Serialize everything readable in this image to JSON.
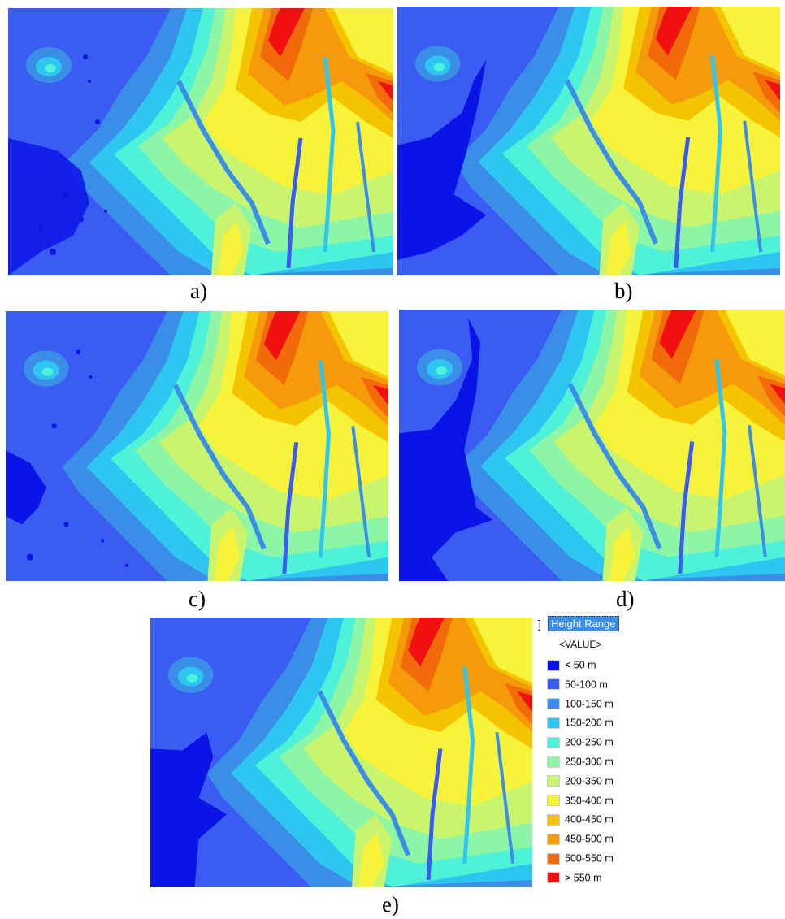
{
  "panels": [
    {
      "id": "a",
      "caption": "a)"
    },
    {
      "id": "b",
      "caption": "b)"
    },
    {
      "id": "c",
      "caption": "c)"
    },
    {
      "id": "d",
      "caption": "d)"
    },
    {
      "id": "e",
      "caption": "e)"
    }
  ],
  "legend": {
    "bracket": "]",
    "title": "Height Range",
    "subtitle": "<VALUE>",
    "items": [
      {
        "label": "< 50 m",
        "color": "#0a14e6"
      },
      {
        "label": "50-100 m",
        "color": "#3a5cf2"
      },
      {
        "label": "100-150 m",
        "color": "#3b8ee8"
      },
      {
        "label": "150-200 m",
        "color": "#2ec6f0"
      },
      {
        "label": "200-250 m",
        "color": "#4ff2d8"
      },
      {
        "label": "250-300 m",
        "color": "#8cf5a6"
      },
      {
        "label": "200-350 m",
        "color": "#c9f56e"
      },
      {
        "label": "350-400 m",
        "color": "#f7f23a"
      },
      {
        "label": "400-450 m",
        "color": "#f5c400"
      },
      {
        "label": "450-500 m",
        "color": "#f59a0a"
      },
      {
        "label": "500-550 m",
        "color": "#f26a0a"
      },
      {
        "label": "> 550 m",
        "color": "#f01010"
      }
    ]
  }
}
